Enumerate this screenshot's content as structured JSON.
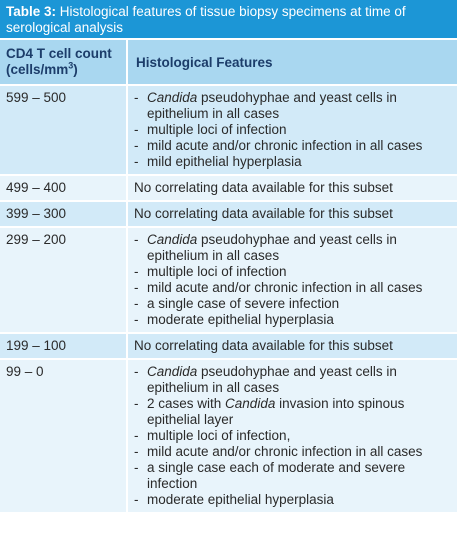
{
  "caption": {
    "label": "Table 3:",
    "text": " Histological features of tissue biopsy specimens at time of serological analysis"
  },
  "headers": {
    "col1_line1": "CD4 T cell count",
    "col1_line2_pre": "(cells/mm",
    "col1_sup": "3",
    "col1_line2_post": ")",
    "col2": "Histological Features"
  },
  "rows": [
    {
      "range": "599 – 500",
      "items": [
        {
          "em": "Candida",
          "text": " pseudohyphae and yeast cells in epithelium in all cases"
        },
        {
          "em": "",
          "text": "multiple loci of infection"
        },
        {
          "em": "",
          "text": "mild acute and/or chronic infection in all cases"
        },
        {
          "em": "",
          "text": "mild epithelial hyperplasia"
        }
      ]
    },
    {
      "range": "499 – 400",
      "note": "No correlating data available for this subset"
    },
    {
      "range": "399 – 300",
      "note": "No correlating data available for this subset"
    },
    {
      "range": "299 – 200",
      "items": [
        {
          "em": "Candida",
          "text": " pseudohyphae and yeast cells in epithelium in all cases"
        },
        {
          "em": "",
          "text": "multiple loci of infection"
        },
        {
          "em": "",
          "text": "mild acute and/or chronic infection in all cases"
        },
        {
          "em": "",
          "text": "a single case of severe infection"
        },
        {
          "em": "",
          "text": "moderate epithelial hyperplasia"
        }
      ]
    },
    {
      "range": "199 – 100",
      "note": "No correlating data available for this subset"
    },
    {
      "range": "99 – 0",
      "items": [
        {
          "em": "Candida",
          "text": " pseudohyphae and yeast cells in epithelium in all cases"
        },
        {
          "pre": "2 cases with ",
          "em": "Candida",
          "text": " invasion into spinous epithelial layer"
        },
        {
          "em": "",
          "text": "multiple loci of infection,"
        },
        {
          "em": "",
          "text": "mild acute and/or chronic infection in all cases",
          "nodash": true
        },
        {
          "em": "",
          "text": "a single case each of moderate and severe infection"
        },
        {
          "em": "",
          "text": "moderate epithelial hyperplasia"
        }
      ]
    }
  ]
}
